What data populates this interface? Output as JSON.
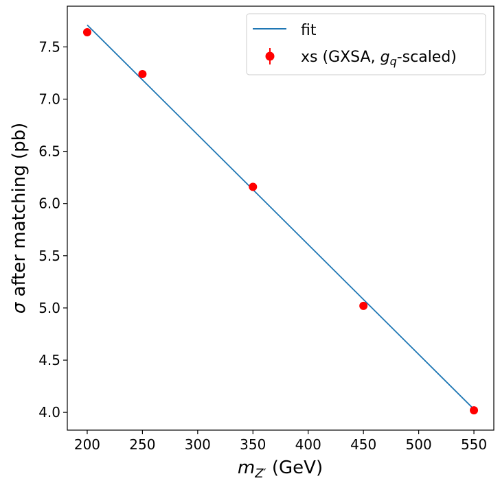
{
  "chart_data": {
    "type": "scatter",
    "title": "",
    "xlabel": {
      "symbol": "m",
      "subscript": "Z′",
      "unit": " (GeV)"
    },
    "ylabel": {
      "symbol": "σ",
      "text": " after matching (pb)"
    },
    "xlim": [
      182,
      568
    ],
    "ylim": [
      3.83,
      7.89
    ],
    "xticks": [
      200,
      250,
      300,
      350,
      400,
      450,
      500,
      550
    ],
    "xtick_labels": [
      "200",
      "250",
      "300",
      "350",
      "400",
      "450",
      "500",
      "550"
    ],
    "yticks": [
      4.0,
      4.5,
      5.0,
      5.5,
      6.0,
      6.5,
      7.0,
      7.5
    ],
    "ytick_labels": [
      "4.0",
      "4.5",
      "5.0",
      "5.5",
      "6.0",
      "6.5",
      "7.0",
      "7.5"
    ],
    "grid": false,
    "legend_position": "top-right",
    "series": [
      {
        "name": "fit",
        "kind": "line",
        "color": "#1f77b4",
        "x": [
          200,
          550
        ],
        "y": [
          7.71,
          4.03
        ]
      },
      {
        "name": "xs",
        "kind": "errorbar",
        "color": "#ff0000",
        "x": [
          200,
          250,
          350,
          450,
          550
        ],
        "y": [
          7.64,
          7.24,
          6.16,
          5.02,
          4.02
        ]
      }
    ],
    "legend": [
      {
        "label": "fit",
        "type": "line"
      },
      {
        "label_pre": "xs (GXSA, ",
        "label_sym": "g",
        "label_sub": "q",
        "label_post": "-scaled)",
        "type": "marker"
      }
    ]
  }
}
